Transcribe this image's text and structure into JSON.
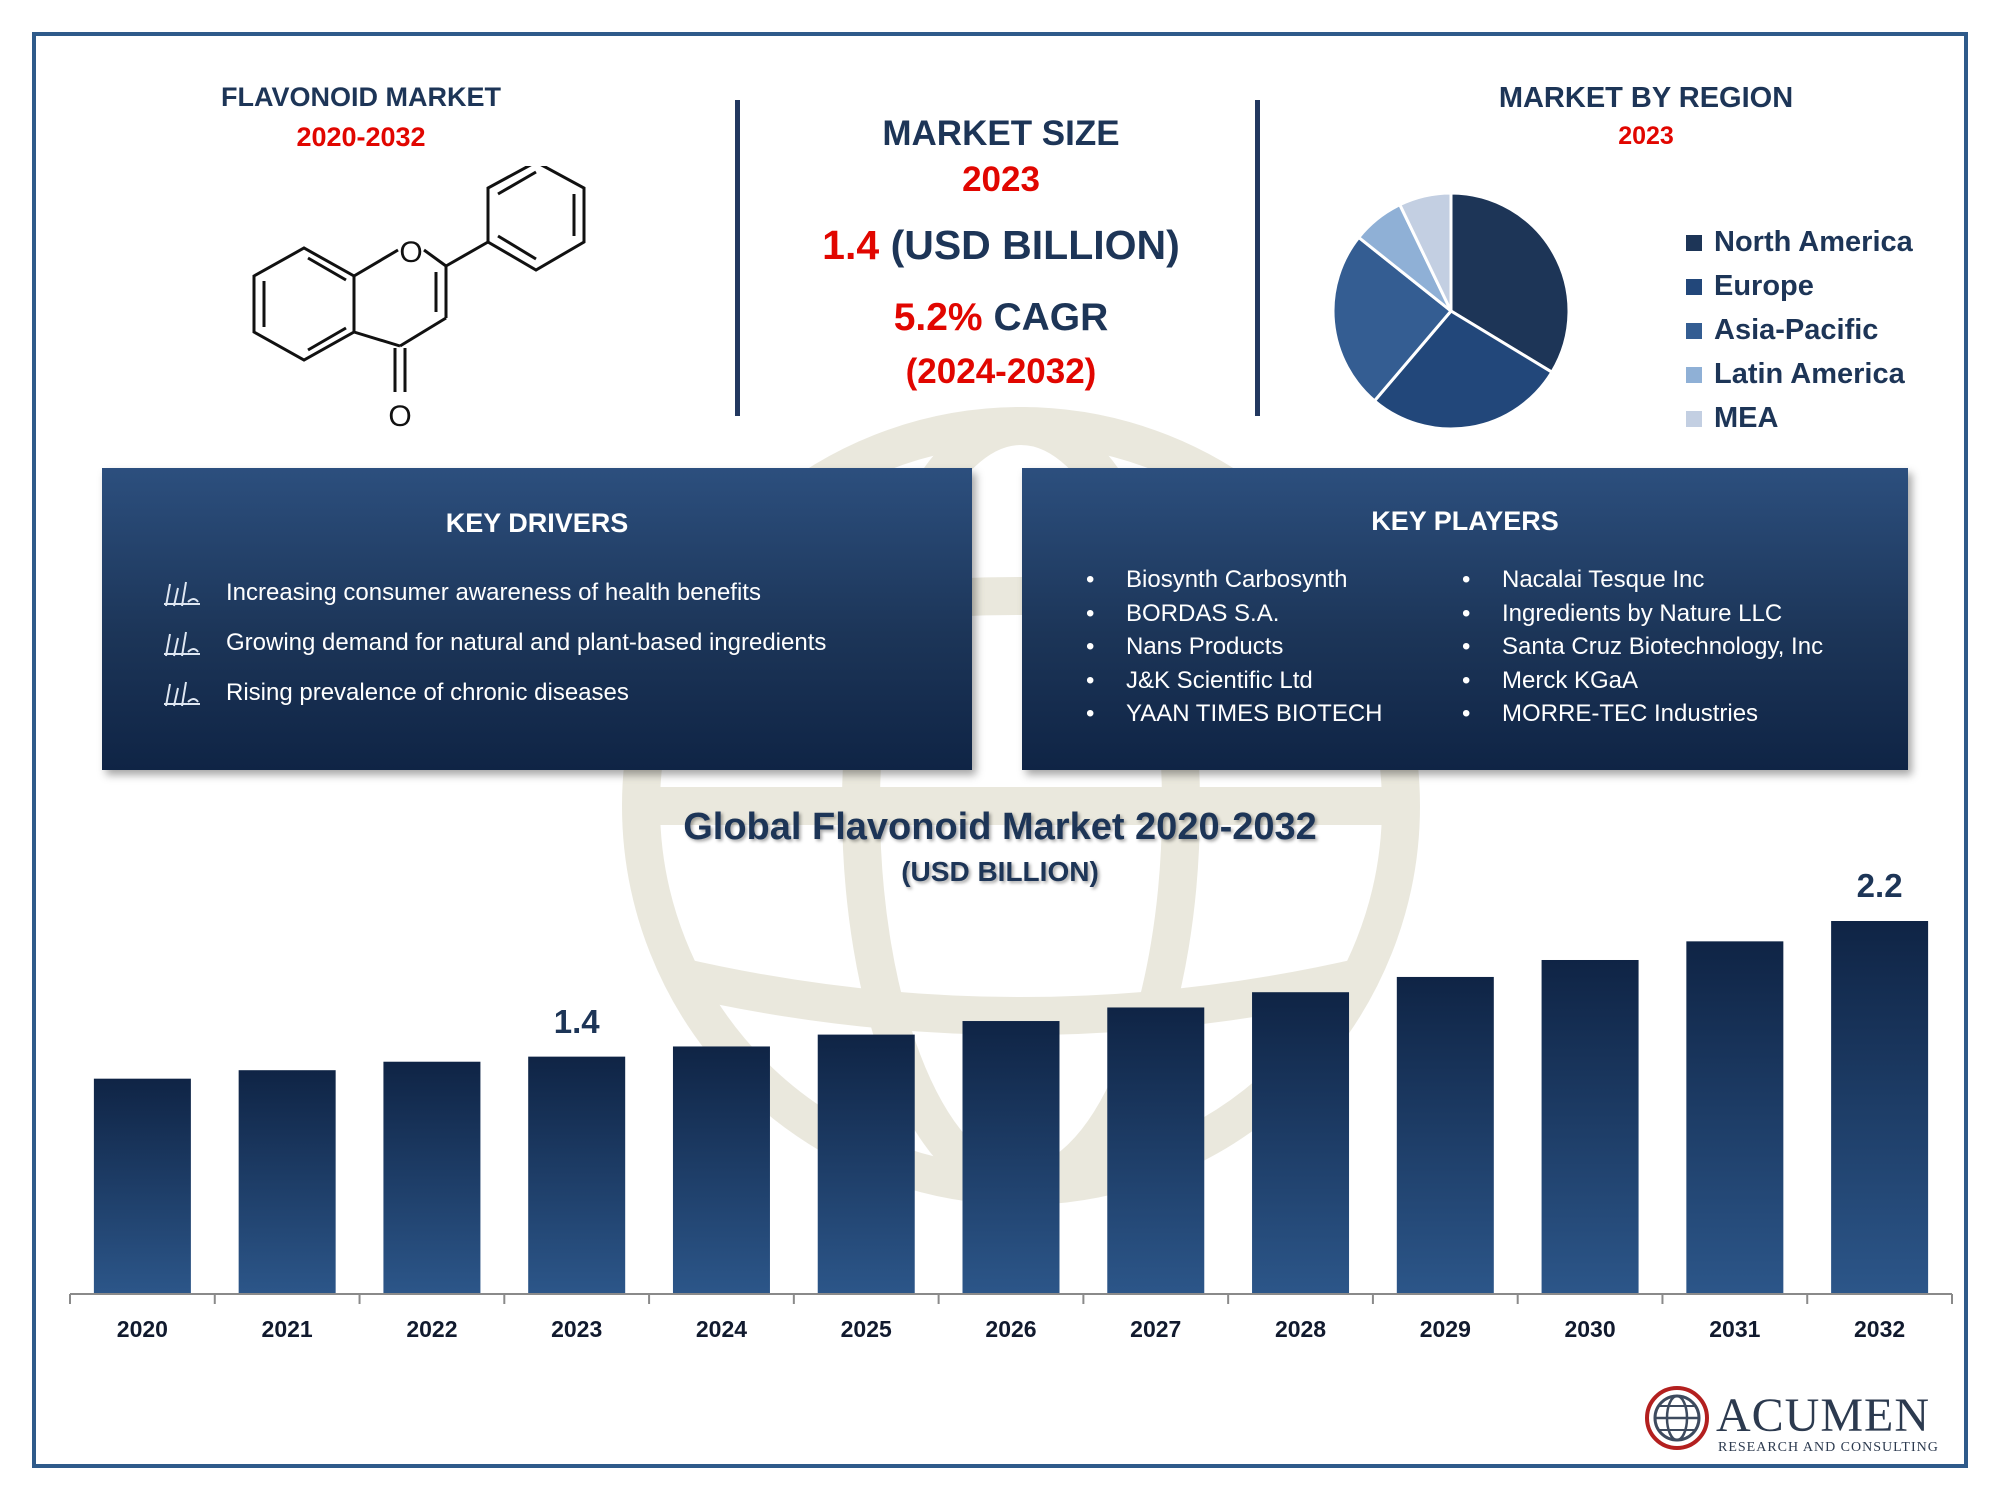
{
  "left_header": {
    "title": "FLAVONOID MARKET",
    "years": "2020-2032"
  },
  "market_size": {
    "title": "MARKET SIZE",
    "year": "2023",
    "value": "1.4",
    "unit": "(USD BILLION)",
    "cagr_value": "5.2%",
    "cagr_label": "CAGR",
    "cagr_period": "(2024-2032)"
  },
  "region": {
    "title": "MARKET BY REGION",
    "year": "2023",
    "legend": [
      {
        "label": "North America",
        "color": "#1d3557"
      },
      {
        "label": "Europe",
        "color": "#22477a"
      },
      {
        "label": "Asia-Pacific",
        "color": "#345d92"
      },
      {
        "label": "Latin America",
        "color": "#8fb0d6"
      },
      {
        "label": "MEA",
        "color": "#c3cfe2"
      }
    ]
  },
  "key_drivers": {
    "title": "KEY DRIVERS",
    "items": [
      "Increasing consumer awareness of health benefits",
      "Growing demand for natural and plant-based ingredients",
      "Rising prevalence of chronic diseases"
    ]
  },
  "key_players": {
    "title": "KEY PLAYERS",
    "col1": [
      "Biosynth Carbosynth",
      "BORDAS S.A.",
      "Nans Products",
      "J&K Scientific Ltd",
      "YAAN TIMES BIOTECH"
    ],
    "col2": [
      "Nacalai Tesque Inc",
      "Ingredients by Nature LLC",
      "Santa Cruz Biotechnology, Inc",
      "Merck KGaA",
      "MORRE-TEC Industries"
    ]
  },
  "logo": {
    "name": "ACUMEN",
    "tagline": "RESEARCH AND CONSULTING"
  },
  "chart_data": [
    {
      "type": "pie",
      "title": "MARKET BY REGION",
      "subtitle": "2023",
      "categories": [
        "North America",
        "Europe",
        "Asia-Pacific",
        "Latin America",
        "MEA"
      ],
      "values": [
        33,
        27,
        24,
        7,
        7
      ],
      "colors": [
        "#1d3557",
        "#22477a",
        "#345d92",
        "#8fb0d6",
        "#c3cfe2"
      ],
      "legend_position": "right"
    },
    {
      "type": "bar",
      "title": "Global Flavonoid Market 2020-2032",
      "subtitle": "(USD BILLION)",
      "categories": [
        "2020",
        "2021",
        "2022",
        "2023",
        "2024",
        "2025",
        "2026",
        "2027",
        "2028",
        "2029",
        "2030",
        "2031",
        "2032"
      ],
      "values": [
        1.27,
        1.32,
        1.37,
        1.4,
        1.46,
        1.53,
        1.61,
        1.69,
        1.78,
        1.87,
        1.97,
        2.08,
        2.2
      ],
      "data_labels": {
        "2023": "1.4",
        "2032": "2.2"
      },
      "ylim": [
        0,
        2.3
      ],
      "grid": false,
      "bar_color": "#1d3557"
    }
  ]
}
